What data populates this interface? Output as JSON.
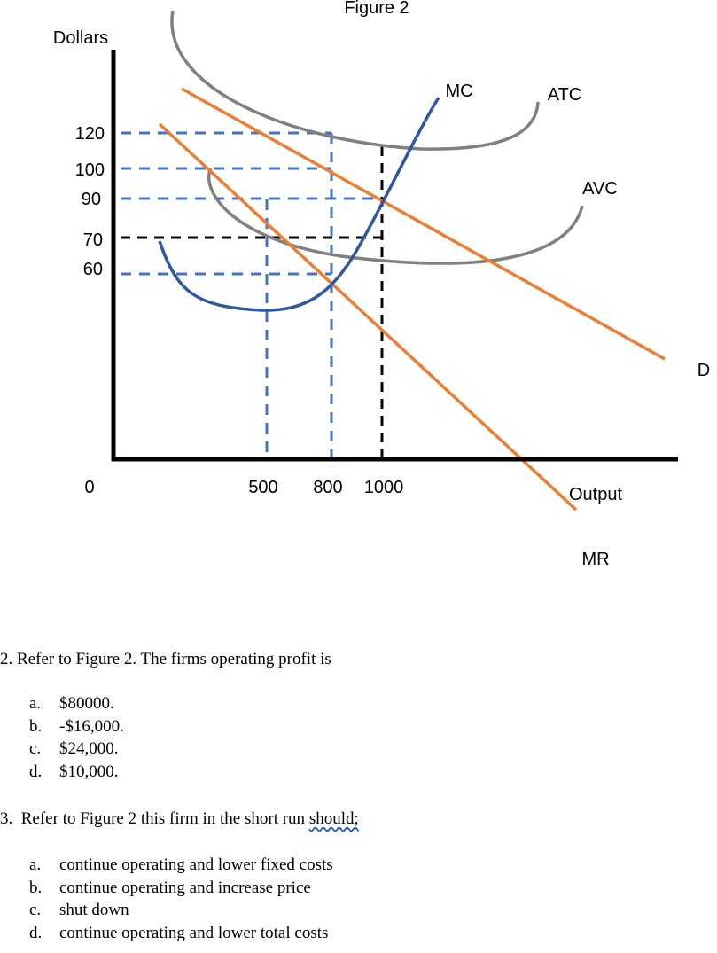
{
  "chart_data": {
    "type": "line",
    "title": "Figure 2",
    "ylabel": "Dollars",
    "xlabel": "Output",
    "origin_label": "0",
    "y_ticks": [
      "120",
      "100",
      "90",
      "70",
      "60"
    ],
    "x_ticks": [
      "500",
      "800",
      "1000"
    ],
    "curve_labels": {
      "mc": "MC",
      "atc": "ATC",
      "avc": "AVC",
      "d": "D",
      "mr": "MR"
    },
    "series": [
      {
        "name": "MC",
        "points": [
          [
            200,
            70
          ],
          [
            500,
            55
          ],
          [
            800,
            60
          ],
          [
            1000,
            90
          ],
          [
            1150,
            120
          ]
        ]
      },
      {
        "name": "ATC",
        "points": [
          [
            250,
            170
          ],
          [
            600,
            127
          ],
          [
            1150,
            118
          ],
          [
            1400,
            125
          ]
        ]
      },
      {
        "name": "AVC",
        "points": [
          [
            400,
            100
          ],
          [
            600,
            80
          ],
          [
            1000,
            66
          ],
          [
            1400,
            68
          ],
          [
            1800,
            90
          ]
        ]
      },
      {
        "name": "D",
        "points": [
          [
            300,
            140
          ],
          [
            1000,
            90
          ],
          [
            2400,
            25
          ]
        ]
      },
      {
        "name": "MR",
        "points": [
          [
            200,
            115
          ],
          [
            800,
            60
          ],
          [
            1900,
            -50
          ]
        ]
      }
    ],
    "guides": [
      {
        "style": "blue-dashed",
        "y": 120,
        "x_end": 800
      },
      {
        "style": "blue-dashed",
        "y": 100,
        "x_end": 800
      },
      {
        "style": "blue-dashed",
        "y": 90,
        "x_end": 1000
      },
      {
        "style": "black-dashed",
        "y": 70,
        "x_end": 1000
      },
      {
        "style": "blue-dashed",
        "y": 60,
        "x_end": 800
      },
      {
        "style": "blue-dashed",
        "x": 500
      },
      {
        "style": "blue-dashed",
        "x": 800
      },
      {
        "style": "black-dashed",
        "x": 1000
      }
    ],
    "colors": {
      "mc": "#2e57a4",
      "cost": "#808080",
      "demand": "#ed7d31",
      "guide": "#4472c4",
      "axis": "#000000"
    }
  },
  "questions": [
    {
      "stem": "2.  Refer to Figure 2. The firms operating profit is",
      "options": [
        {
          "letter": "a.",
          "text": "$80000."
        },
        {
          "letter": "b.",
          "text": "-$16,000."
        },
        {
          "letter": "c.",
          "text": "$24,000."
        },
        {
          "letter": "d.",
          "text": "$10,000."
        }
      ]
    },
    {
      "stem_prefix": "3.  Refer to Figure 2 this firm in the short run ",
      "stem_underlined": "should;",
      "options": [
        {
          "letter": "a.",
          "text": "continue operating and lower fixed costs"
        },
        {
          "letter": "b.",
          "text": "continue operating and increase price"
        },
        {
          "letter": "c.",
          "text": "shut down"
        },
        {
          "letter": "d.",
          "text": "continue operating and lower total costs"
        }
      ]
    }
  ]
}
